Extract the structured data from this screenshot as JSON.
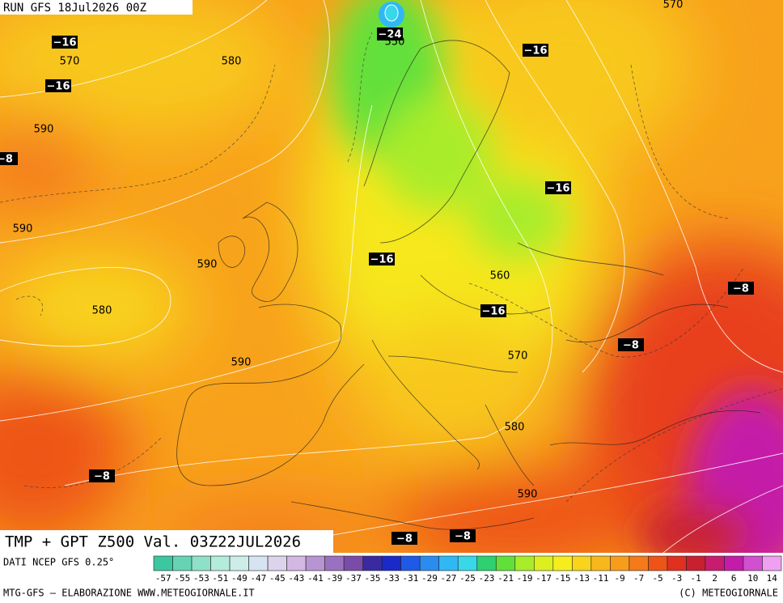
{
  "header": {
    "run": "RUN GFS 18Jul2026 00Z"
  },
  "map": {
    "title": "TMP + GPT Z500 Val. 03Z22JUL2026",
    "temperature_labels": [
      "−16",
      "−16",
      "−8",
      "−24",
      "−16",
      "−16",
      "−16",
      "−16",
      "−8",
      "−8",
      "−8",
      "−8",
      "−8"
    ],
    "geopotential_labels": [
      "570",
      "580",
      "550",
      "570",
      "590",
      "590",
      "590",
      "580",
      "560",
      "570",
      "590",
      "580",
      "590"
    ]
  },
  "footer": {
    "source": "DATI NCEP GFS 0.25°",
    "credit": "MTG-GFS — ELABORAZIONE WWW.METEOGIORNALE.IT",
    "copyright": "(C) METEOGIORNALE",
    "legend": [
      {
        "label": "-57",
        "color": "#3cc7a0"
      },
      {
        "label": "-55",
        "color": "#66d4b4"
      },
      {
        "label": "-53",
        "color": "#8fe0c8"
      },
      {
        "label": "-51",
        "color": "#b4ecdc"
      },
      {
        "label": "-49",
        "color": "#cdeee8"
      },
      {
        "label": "-47",
        "color": "#d6e4f0"
      },
      {
        "label": "-45",
        "color": "#dcd4ec"
      },
      {
        "label": "-43",
        "color": "#d2b8e2"
      },
      {
        "label": "-41",
        "color": "#b794d2"
      },
      {
        "label": "-39",
        "color": "#9a70c0"
      },
      {
        "label": "-37",
        "color": "#7a4ca8"
      },
      {
        "label": "-35",
        "color": "#3a2aa0"
      },
      {
        "label": "-33",
        "color": "#1a2ac8"
      },
      {
        "label": "-31",
        "color": "#1e5ae6"
      },
      {
        "label": "-29",
        "color": "#2a8cf0"
      },
      {
        "label": "-27",
        "color": "#30b8f4"
      },
      {
        "label": "-25",
        "color": "#38d8e8"
      },
      {
        "label": "-23",
        "color": "#2ed070"
      },
      {
        "label": "-21",
        "color": "#62e03a"
      },
      {
        "label": "-19",
        "color": "#a8ec2a"
      },
      {
        "label": "-17",
        "color": "#dcf020"
      },
      {
        "label": "-15",
        "color": "#f6ee1c"
      },
      {
        "label": "-13",
        "color": "#f8d41a"
      },
      {
        "label": "-11",
        "color": "#f8b81c"
      },
      {
        "label": "-9",
        "color": "#f89c1c"
      },
      {
        "label": "-7",
        "color": "#f47a1a"
      },
      {
        "label": "-5",
        "color": "#ee5418"
      },
      {
        "label": "-3",
        "color": "#e03020"
      },
      {
        "label": "-1",
        "color": "#c82030"
      },
      {
        "label": "2",
        "color": "#c81c70"
      },
      {
        "label": "6",
        "color": "#c41ca8"
      },
      {
        "label": "10",
        "color": "#d050d0"
      },
      {
        "label": "14",
        "color": "#f0a0f0"
      }
    ]
  }
}
